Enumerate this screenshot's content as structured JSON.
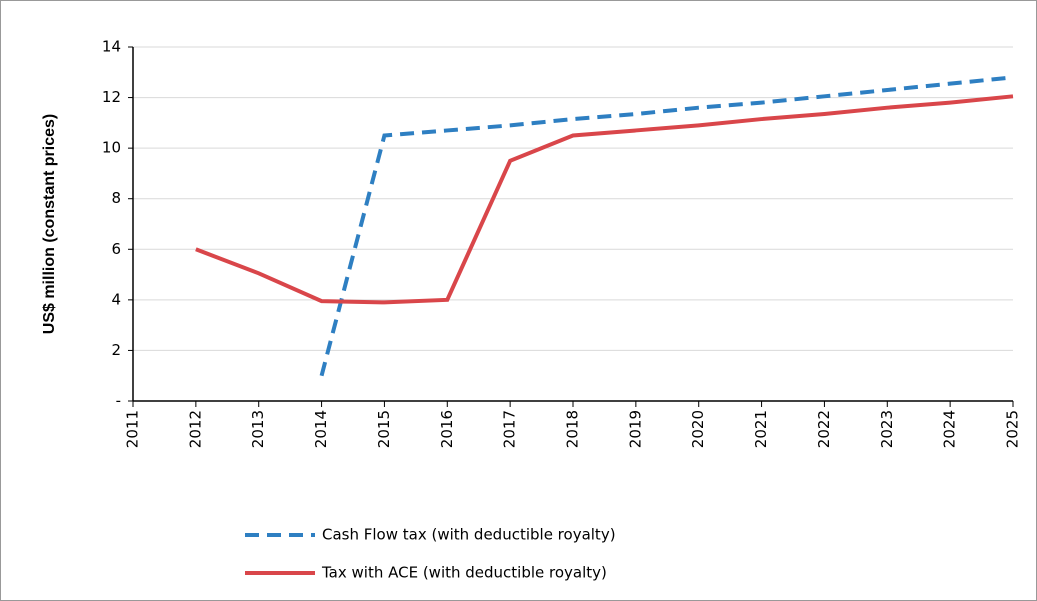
{
  "chart_data": {
    "type": "line",
    "y_label": "US$ million (constant prices)",
    "x": [
      2011,
      2012,
      2013,
      2014,
      2015,
      2016,
      2017,
      2018,
      2019,
      2020,
      2021,
      2022,
      2023,
      2024,
      2025
    ],
    "xlim": [
      2011,
      2025
    ],
    "xticks": [
      2011,
      2012,
      2013,
      2014,
      2015,
      2016,
      2017,
      2018,
      2019,
      2020,
      2021,
      2022,
      2023,
      2024,
      2025
    ],
    "ylim": [
      0,
      14
    ],
    "yticks": [
      {
        "value": 0,
        "label": "-"
      },
      2,
      4,
      6,
      8,
      10,
      12,
      14
    ],
    "grid": true,
    "legend": "bottom",
    "series": [
      {
        "name": "Cash Flow tax (with deductible royalty)",
        "color": "#2e7fc2",
        "dash": true,
        "values": [
          null,
          null,
          null,
          1.0,
          10.5,
          10.7,
          10.9,
          11.15,
          11.35,
          11.6,
          11.8,
          12.05,
          12.3,
          12.55,
          12.8
        ]
      },
      {
        "name": "Tax with ACE  (with deductible royalty)",
        "color": "#d9464a",
        "dash": false,
        "values": [
          null,
          6.0,
          5.05,
          3.95,
          3.9,
          4.0,
          9.5,
          10.5,
          10.7,
          10.9,
          11.15,
          11.35,
          11.6,
          11.8,
          12.05
        ]
      }
    ]
  }
}
